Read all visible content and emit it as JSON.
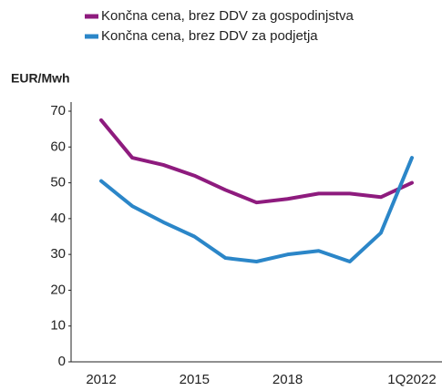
{
  "chart_data": {
    "type": "line",
    "y_label": "EUR/Mwh",
    "categories": [
      "2012",
      null,
      null,
      "2015",
      null,
      null,
      "2018",
      null,
      null,
      null,
      "1Q2022"
    ],
    "series": [
      {
        "name": "Končna cena, brez DDV za gospodinjstva",
        "color": "#8e1b7e",
        "values": [
          67.5,
          57,
          55,
          52,
          48,
          44.5,
          45.5,
          47,
          47,
          46,
          50
        ]
      },
      {
        "name": "Končna cena, brez DDV za podjetja",
        "color": "#2b86c8",
        "values": [
          50.5,
          43.5,
          39,
          35,
          29,
          28,
          30,
          31,
          28,
          36,
          57
        ]
      }
    ],
    "ylim": [
      0,
      70
    ],
    "yticks": [
      0,
      10,
      20,
      30,
      40,
      50,
      60,
      70
    ],
    "grid": false
  }
}
